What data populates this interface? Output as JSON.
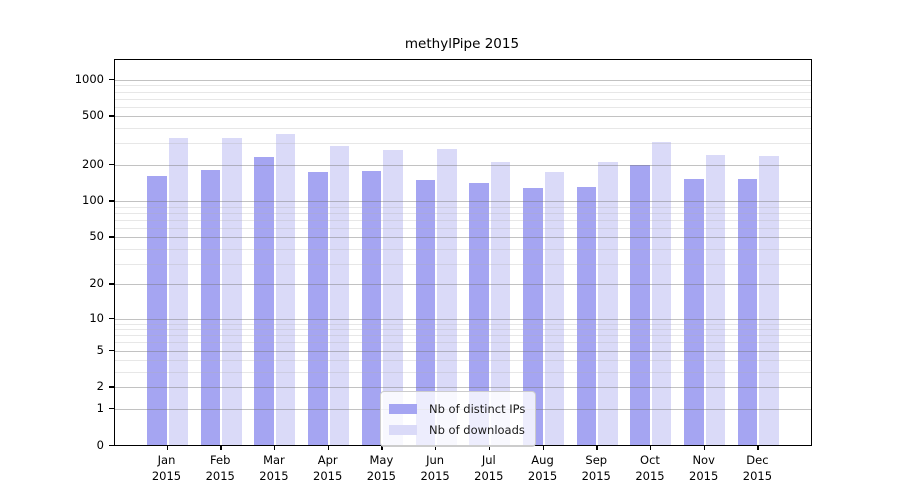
{
  "title": "methylPipe 2015",
  "chart_data": {
    "type": "bar",
    "title": "methylPipe 2015",
    "categories": [
      "Jan",
      "Feb",
      "Mar",
      "Apr",
      "May",
      "Jun",
      "Jul",
      "Aug",
      "Sep",
      "Oct",
      "Nov",
      "Dec"
    ],
    "x_sublabel": "2015",
    "series": [
      {
        "name": "Nb of distinct IPs",
        "color": "#a5a5f2",
        "values": [
          160,
          181,
          232,
          175,
          177,
          151,
          142,
          128,
          131,
          200,
          153,
          152
        ]
      },
      {
        "name": "Nb of downloads",
        "color": "#dadaf8",
        "values": [
          332,
          334,
          358,
          287,
          267,
          268,
          212,
          174,
          211,
          307,
          241,
          238
        ]
      }
    ],
    "y_scale": "log10(1+x)",
    "y_ticks": [
      0,
      1,
      2,
      5,
      10,
      20,
      50,
      100,
      200,
      500,
      1000
    ],
    "y_minor_ticks": [
      3,
      4,
      6,
      7,
      8,
      9,
      30,
      40,
      60,
      70,
      80,
      90,
      300,
      400,
      600,
      700,
      800,
      900
    ],
    "ylim": [
      0,
      1450
    ],
    "grid": true,
    "legend_position": "inside lower center",
    "axis_color": "#000000",
    "grid_major_color": "#c2c2c2",
    "grid_minor_color": "#ebebeb"
  }
}
